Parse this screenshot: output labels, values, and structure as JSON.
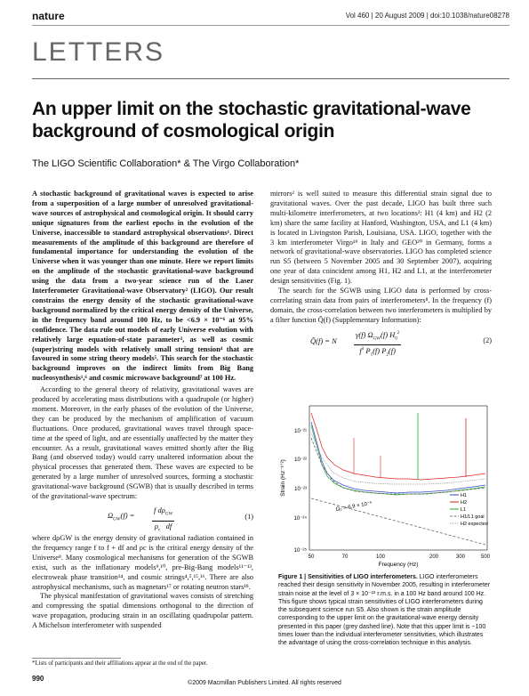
{
  "header": {
    "journal": "nature",
    "meta": "Vol 460 | 20 August 2009 | doi:10.1038/nature08278"
  },
  "section": "LETTERS",
  "title": "An upper limit on the stochastic gravitational-wave background of cosmological origin",
  "authors": "The LIGO Scientific Collaboration* & The Virgo Collaboration*",
  "left_column": {
    "abstract": "A stochastic background of gravitational waves is expected to arise from a superposition of a large number of unresolved gravitational-wave sources of astrophysical and cosmological origin. It should carry unique signatures from the earliest epochs in the evolution of the Universe, inaccessible to standard astrophysical observations¹. Direct measurements of the amplitude of this background are therefore of fundamental importance for understanding the evolution of the Universe when it was younger than one minute. Here we report limits on the amplitude of the stochastic gravitational-wave background using the data from a two-year science run of the Laser Interferometer Gravitational-wave Observatory² (LIGO). Our result constrains the energy density of the stochastic gravitational-wave background normalized by the critical energy density of the Universe, in the frequency band around 100 Hz, to be <6.9 × 10⁻⁶ at 95% confidence. The data rule out models of early Universe evolution with relatively large equation-of-state parameter³, as well as cosmic (super)string models with relatively small string tension⁴ that are favoured in some string theory models⁵. This search for the stochastic background improves on the indirect limits from Big Bang nucleosynthesis¹,⁶ and cosmic microwave background⁷ at 100 Hz.",
    "para1": "According to the general theory of relativity, gravitational waves are produced by accelerating mass distributions with a quadrupole (or higher) moment. Moreover, in the early phases of the evolution of the Universe, they can be produced by the mechanism of amplification of vacuum fluctuations. Once produced, gravitational waves travel through space-time at the speed of light, and are essentially unaffected by the matter they encounter. As a result, gravitational waves emitted shortly after the Big Bang (and observed today) would carry unaltered information about the physical processes that generated them. These waves are expected to be generated by a large number of unresolved sources, forming a stochastic gravitational-wave background (SGWB) that is usually described in terms of the gravitational-wave spectrum:",
    "eq1_left": "Ω",
    "eq1_sub": "GW",
    "eq1_arg": "(f) =",
    "eq1_num": "f   dρ",
    "eq1_num_sub": "GW",
    "eq1_den": "ρ",
    "eq1_den_sub": "c",
    "eq1_den2": "df",
    "eq1_number": "(1)",
    "para2": "where dρGW is the energy density of gravitational radiation contained in the frequency range f to f + df and ρc is the critical energy density of the Universe⁸. Many cosmological mechanisms for generation of the SGWB exist, such as the inflationary models⁹,¹⁰, pre-Big-Bang models¹¹⁻¹³, electroweak phase transition¹⁴, and cosmic strings⁴,⁵,¹⁵,¹⁶. There are also astrophysical mechanisms, such as magnetars¹⁷ or rotating neutron stars¹⁸.",
    "para3": "The physical manifestation of gravitational waves consists of stretching and compressing the spatial dimensions orthogonal to the direction of wave propagation, producing strain in an oscillating quadrupolar pattern. A Michelson interferometer with suspended"
  },
  "right_column": {
    "para1": "mirrors² is well suited to measure this differential strain signal due to gravitational waves. Over the past decade, LIGO has built three such multi-kilometre interferometers, at two locations²: H1 (4 km) and H2 (2 km) share the same facility at Hanford, Washington, USA, and L1 (4 km) is located in Livingston Parish, Louisiana, USA. LIGO, together with the 3 km interferometer Virgo¹⁹ in Italy and GEO²⁰ in Germany, forms a network of gravitational-wave observatories. LIGO has completed science run S5 (between 5 November 2005 and 30 September 2007), acquiring one year of data coincident among H1, H2 and L1, at the interferometer design sensitivities (Fig. 1).",
    "para2": "The search for the SGWB using LIGO data is performed by cross-correlating strain data from pairs of interferometers⁸. In the frequency (f) domain, the cross-correlation between two interferometers is multiplied by a filter function Q̃(f) (Supplementary Information):",
    "eq2_lhs": "Q̃(f) = N",
    "eq2_num": "γ(f) Ω",
    "eq2_num_sub": "GW",
    "eq2_num2": "(f) H",
    "eq2_num_sub2": "0",
    "eq2_num_sup2": "2",
    "eq2_den": "f",
    "eq2_den_sup": "3",
    "eq2_den2": " P",
    "eq2_den_sub2": "1",
    "eq2_den3": "(f) P",
    "eq2_den_sub3": "2",
    "eq2_den4": "(f)",
    "eq2_number": "(2)"
  },
  "figure": {
    "ylabel": "Strain (Hz⁻¹ᐟ²)",
    "xlabel": "Frequency (Hz)",
    "y_ticks": [
      "10⁻²¹",
      "10⁻²²",
      "10⁻²³",
      "10⁻²⁴",
      "10⁻²⁵"
    ],
    "x_ticks": [
      "50",
      "70",
      "100",
      "200",
      "300",
      "500"
    ],
    "annotation": "Ω₀ = 6.9 × 10⁻⁶",
    "legend": [
      "H1",
      "H2",
      "L1",
      "H1/L1 goal",
      "H2 expected"
    ],
    "colors": {
      "H1": "#3344cc",
      "H2": "#dd2222",
      "L1": "#22aa33",
      "goal": "#555555",
      "expected": "#888888"
    }
  },
  "caption": {
    "label": "Figure 1 | Sensitivities of LIGO interferometers.",
    "text": "LIGO interferometers reached their design sensitivity in November 2005, resulting in interferometer strain noise at the level of 3 × 10⁻²³ r.m.s. in a 100 Hz band around 100 Hz. This figure shows typical strain sensitivities of LIGO interferometers during the subsequent science run S5. Also shown is the strain amplitude corresponding to the upper limit on the gravitational-wave energy density presented in this paper (grey dashed line). Note that this upper limit is ~100 times lower than the individual interferometer sensitivities, which illustrates the advantage of using the cross-correlation technique in this analysis."
  },
  "footnote": "*Lists of participants and their affiliations appear at the end of the paper.",
  "page_number": "990",
  "copyright": "©2009 Macmillan Publishers Limited. All rights reserved"
}
